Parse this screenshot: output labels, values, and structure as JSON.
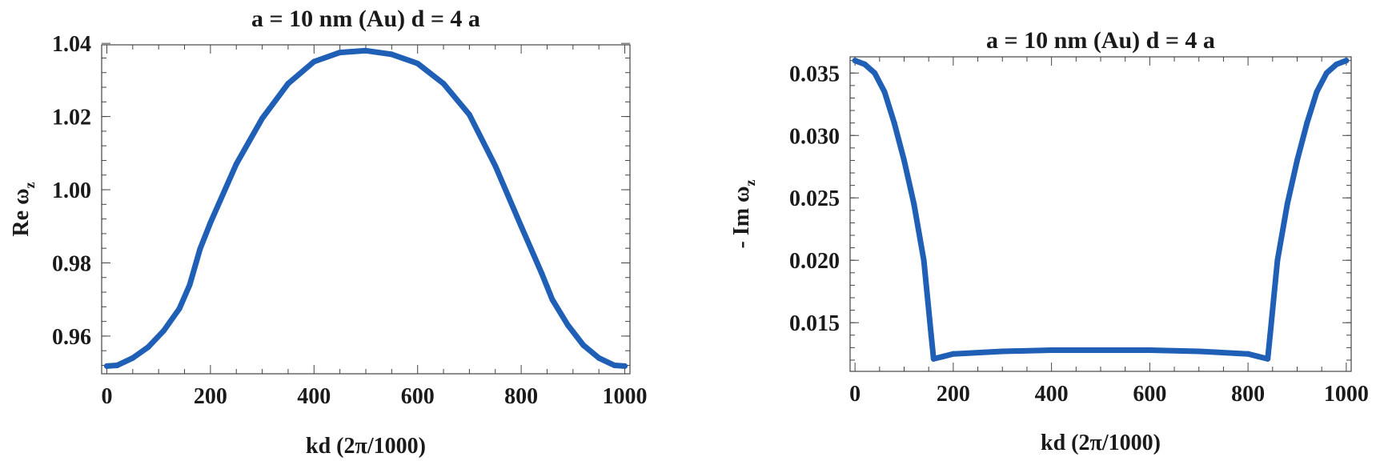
{
  "chart_data": [
    {
      "type": "line",
      "title": "a = 10 nm (Au) d = 4 a",
      "xlabel": "kd (2π/1000)",
      "ylabel": "Re ω",
      "ylabel_sub": "z",
      "xlim": [
        -10,
        1010
      ],
      "ylim": [
        0.9497,
        1.0396
      ],
      "xticks": [
        0,
        200,
        400,
        600,
        800,
        1000
      ],
      "xtick_labels": [
        "0",
        "200",
        "400",
        "600",
        "800",
        "1000"
      ],
      "yticks": [
        0.96,
        0.98,
        1.0,
        1.02,
        1.04
      ],
      "ytick_labels": [
        "0.96",
        "0.98",
        "1.00",
        "1.02",
        "1.04"
      ],
      "color": "#1f5fb5",
      "series": [
        {
          "x": [
            0,
            20,
            50,
            80,
            110,
            140,
            160,
            180,
            200,
            250,
            300,
            350,
            400,
            450,
            500,
            550,
            600,
            650,
            700,
            750,
            800,
            820,
            840,
            860,
            890,
            920,
            950,
            980,
            1000
          ],
          "values": [
            0.9518,
            0.952,
            0.954,
            0.957,
            0.9615,
            0.9675,
            0.974,
            0.9838,
            0.991,
            1.007,
            1.0195,
            1.029,
            1.035,
            1.0375,
            1.038,
            1.037,
            1.0345,
            1.029,
            1.0205,
            1.0065,
            0.99,
            0.9835,
            0.977,
            0.97,
            0.963,
            0.9575,
            0.954,
            0.952,
            0.9518
          ]
        }
      ]
    },
    {
      "type": "line",
      "title": "a = 10 nm (Au) d = 4 a",
      "xlabel": "kd (2π/1000)",
      "ylabel": "- Im ω",
      "ylabel_sub": "z",
      "xlim": [
        -10,
        1010
      ],
      "ylim": [
        0.0111,
        0.0363
      ],
      "xticks": [
        0,
        200,
        400,
        600,
        800,
        1000
      ],
      "xtick_labels": [
        "0",
        "200",
        "400",
        "600",
        "800",
        "1000"
      ],
      "yticks": [
        0.015,
        0.02,
        0.025,
        0.03,
        0.035
      ],
      "ytick_labels": [
        "0.015",
        "0.020",
        "0.025",
        "0.030",
        "0.035"
      ],
      "color": "#1f5fb5",
      "series": [
        {
          "x": [
            0,
            20,
            40,
            60,
            80,
            100,
            120,
            140,
            155,
            160,
            180,
            200,
            300,
            400,
            500,
            600,
            700,
            800,
            820,
            840,
            845,
            860,
            880,
            900,
            920,
            940,
            960,
            980,
            1000
          ],
          "values": [
            0.036,
            0.0357,
            0.035,
            0.0335,
            0.031,
            0.028,
            0.0245,
            0.02,
            0.014,
            0.0121,
            0.0123,
            0.0125,
            0.0127,
            0.0128,
            0.0128,
            0.0128,
            0.0127,
            0.0125,
            0.0123,
            0.0121,
            0.014,
            0.02,
            0.0245,
            0.028,
            0.031,
            0.0335,
            0.035,
            0.0357,
            0.036
          ]
        }
      ]
    }
  ]
}
